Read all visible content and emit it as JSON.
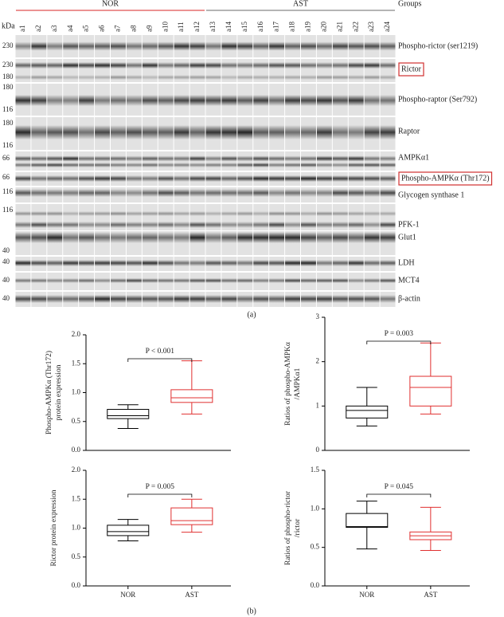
{
  "blot": {
    "unit": "kDa",
    "groups_label": "Groups",
    "groups": [
      {
        "name": "NOR",
        "color": "#e05050",
        "lanes": [
          "a1",
          "a2",
          "a3",
          "a4",
          "a5",
          "a6",
          "a7",
          "a8",
          "a9",
          "a10",
          "a11",
          "a12"
        ]
      },
      {
        "name": "AST",
        "color": "#888888",
        "lanes": [
          "a13",
          "a14",
          "a15",
          "a16",
          "a17",
          "a18",
          "a19",
          "a20",
          "a21",
          "a22",
          "a23",
          "a24"
        ]
      }
    ],
    "rows": [
      {
        "name": "Phospho-rictor (ser1219)",
        "markers": [
          230
        ]
      },
      {
        "name": "Rictor",
        "markers": [
          230,
          180
        ],
        "boxed": true
      },
      {
        "name": "Phospho-raptor (Ser792)",
        "markers": [
          180,
          116
        ]
      },
      {
        "name": "Raptor",
        "markers": [
          180,
          116
        ]
      },
      {
        "name": "AMPKα1",
        "markers": [
          66
        ]
      },
      {
        "name": "Phospho-AMPKα (Thr172)",
        "markers": [
          66
        ],
        "boxed": true
      },
      {
        "name": "Glycogen synthase 1",
        "markers": [
          116
        ]
      },
      {
        "name": "PFK-1",
        "markers": [
          116
        ]
      },
      {
        "name": "Glut1",
        "markers": [
          40
        ]
      },
      {
        "name": "LDH",
        "markers": [
          40
        ]
      },
      {
        "name": "MCT4",
        "markers": [
          40
        ]
      },
      {
        "name": "β-actin",
        "markers": [
          40
        ]
      }
    ],
    "panel_label": "(a)"
  },
  "panel_b_label": "(b)",
  "chart_data": [
    {
      "type": "box",
      "ylabel": [
        "Phospho-AMPKα (Thr172)",
        "protein expression"
      ],
      "annotation": "P < 0.001",
      "ylim": [
        0,
        2
      ],
      "yticks": [
        {
          "value": 0,
          "label": "0.0"
        },
        {
          "value": 0.5,
          "label": "0.5"
        },
        {
          "value": 1,
          "label": "1.0"
        },
        {
          "value": 1.5,
          "label": "1.5"
        },
        {
          "value": 2,
          "label": "2.0"
        }
      ],
      "boxes": [
        {
          "color": "#000000",
          "min": 0.38,
          "q1": 0.55,
          "median": 0.6,
          "q3": 0.71,
          "max": 0.79
        },
        {
          "color": "#e03030",
          "min": 0.63,
          "q1": 0.83,
          "median": 0.91,
          "q3": 1.05,
          "max": 1.55
        }
      ]
    },
    {
      "type": "box",
      "ylabel": [
        "Ratios of phospho-AMPKα",
        "/AMPKα1"
      ],
      "annotation": "P = 0.003",
      "ylim": [
        0,
        3
      ],
      "yticks": [
        0,
        1,
        2,
        3
      ],
      "boxes": [
        {
          "color": "#000000",
          "min": 0.55,
          "q1": 0.73,
          "median": 0.9,
          "q3": 1.0,
          "max": 1.42
        },
        {
          "color": "#e03030",
          "min": 0.82,
          "q1": 1.0,
          "median": 1.42,
          "q3": 1.67,
          "max": 2.42
        }
      ]
    },
    {
      "type": "box",
      "ylabel": [
        "Rictor protein expression"
      ],
      "annotation": "P = 0.005",
      "categories": [
        "NOR",
        "AST"
      ],
      "ylim": [
        0,
        2
      ],
      "yticks": [
        {
          "value": 0,
          "label": "0.0"
        },
        {
          "value": 0.5,
          "label": "0.5"
        },
        {
          "value": 1,
          "label": "1.0"
        },
        {
          "value": 1.5,
          "label": "1.5"
        },
        {
          "value": 2,
          "label": "2.0"
        }
      ],
      "boxes": [
        {
          "color": "#000000",
          "min": 0.78,
          "q1": 0.87,
          "median": 0.94,
          "q3": 1.05,
          "max": 1.15
        },
        {
          "color": "#e03030",
          "min": 0.93,
          "q1": 1.06,
          "median": 1.13,
          "q3": 1.35,
          "max": 1.5
        }
      ]
    },
    {
      "type": "box",
      "ylabel": [
        "Ratios of phospho-rictor",
        "/rictor"
      ],
      "annotation": "P = 0.045",
      "categories": [
        "NOR",
        "AST"
      ],
      "ylim": [
        0,
        1.5
      ],
      "yticks": [
        {
          "value": 0,
          "label": "0.0"
        },
        {
          "value": 0.5,
          "label": "0.5"
        },
        {
          "value": 1,
          "label": "1.0"
        },
        {
          "value": 1.5,
          "label": "1.5"
        }
      ],
      "boxes": [
        {
          "color": "#000000",
          "min": 0.48,
          "q1": 0.76,
          "median": 0.77,
          "q3": 0.94,
          "max": 1.1
        },
        {
          "color": "#e03030",
          "min": 0.46,
          "q1": 0.6,
          "median": 0.65,
          "q3": 0.7,
          "max": 1.02
        }
      ]
    }
  ]
}
